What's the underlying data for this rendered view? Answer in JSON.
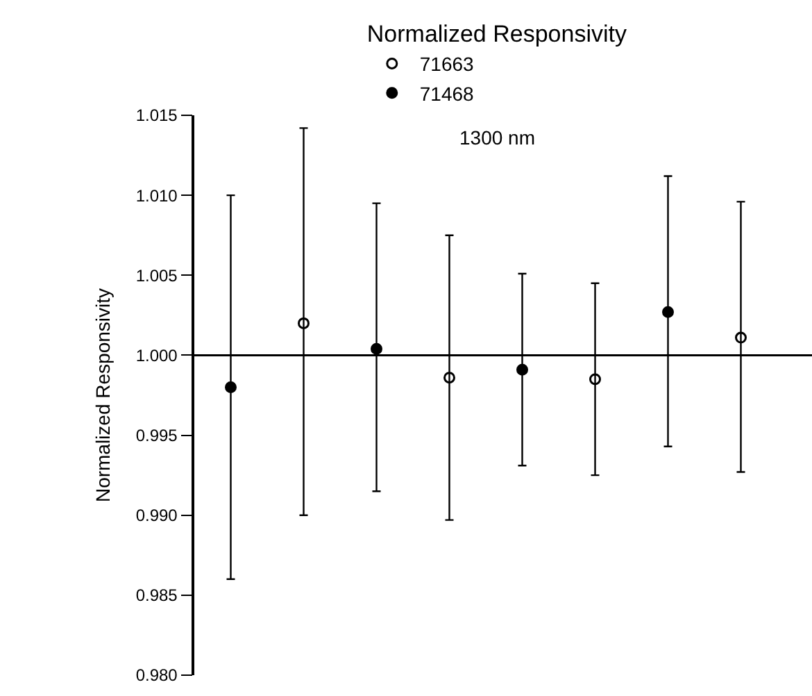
{
  "chart_data": {
    "type": "scatter",
    "ylabel": "Normalized Responsivity",
    "legend_title": "Normalized Responsivity",
    "categories": [
      null,
      null,
      null,
      null,
      null,
      null,
      null,
      null
    ],
    "series": [
      {
        "name": "71663",
        "color": "#000000",
        "marker": "circle-open",
        "values": [
          null,
          1.002,
          null,
          0.9986,
          null,
          0.9985,
          null,
          1.0011
        ],
        "errors": [
          null,
          [
            0.99,
            1.0142
          ],
          null,
          [
            0.9897,
            1.0075
          ],
          null,
          [
            0.9925,
            1.0045
          ],
          null,
          [
            0.9927,
            1.0096
          ]
        ]
      },
      {
        "name": "71468",
        "color": "#000000",
        "marker": "circle",
        "values": [
          0.998,
          null,
          1.0004,
          null,
          0.9991,
          null,
          1.0027,
          null
        ],
        "errors": [
          [
            0.986,
            1.01
          ],
          null,
          [
            0.9915,
            1.0095
          ],
          null,
          [
            0.9931,
            1.0051
          ],
          null,
          [
            0.9943,
            1.0112
          ],
          null
        ]
      }
    ],
    "annotations": [
      "1300 nm"
    ],
    "ylim": [
      0.98,
      1.015
    ],
    "yticks": [
      {
        "value": 0.98,
        "label": "0.980"
      },
      {
        "value": 0.985,
        "label": "0.985"
      },
      {
        "value": 0.99,
        "label": "0.990"
      },
      {
        "value": 0.995,
        "label": "0.995"
      },
      {
        "value": 1.0,
        "label": "1.000"
      },
      {
        "value": 1.005,
        "label": "1.005"
      },
      {
        "value": 1.01,
        "label": "1.010"
      },
      {
        "value": 1.015,
        "label": "1.015"
      }
    ],
    "ref_lines": [
      {
        "axis": "y",
        "value": 1.0,
        "color": "#000000"
      }
    ],
    "legend": "top"
  }
}
